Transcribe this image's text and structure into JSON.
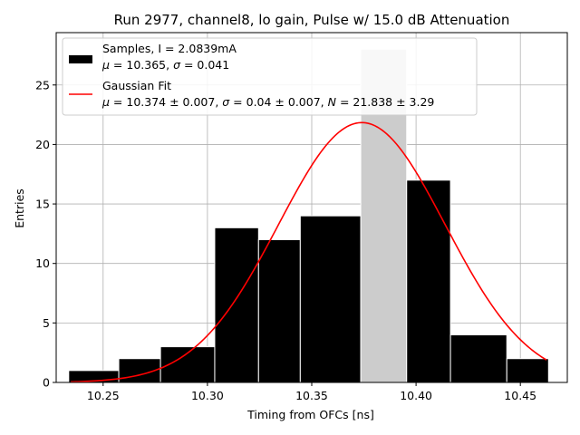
{
  "chart_data": {
    "type": "bar",
    "title": "Run 2977, channel8, lo gain, Pulse w/ 15.0 dB Attenuation",
    "xlabel": "Timing from OFCs [ns]",
    "ylabel": "Entries",
    "xlim": [
      10.2275,
      10.4725
    ],
    "ylim": [
      0,
      29.4
    ],
    "xticks": [
      "10.25",
      "10.30",
      "10.35",
      "10.40",
      "10.45"
    ],
    "xtick_values": [
      10.25,
      10.3,
      10.35,
      10.4,
      10.45
    ],
    "yticks": [
      "0",
      "5",
      "10",
      "15",
      "20",
      "25"
    ],
    "ytick_values": [
      0,
      5,
      10,
      15,
      20,
      25
    ],
    "grid": true,
    "legend_position": "top-left",
    "bin_edges": [
      10.2335,
      10.2575,
      10.2775,
      10.3035,
      10.3245,
      10.3445,
      10.3735,
      10.3955,
      10.4165,
      10.4435,
      10.4635
    ],
    "counts": [
      1,
      2,
      3,
      13,
      12,
      14,
      28,
      17,
      4,
      2
    ],
    "highlighted_bin": 6,
    "fit": {
      "mu": 10.374,
      "sigma": 0.04,
      "N": 21.838,
      "x_range": [
        10.2345,
        10.4625
      ]
    },
    "colors": {
      "bar": "#000000",
      "bar_edge": "#ffffff",
      "highlight_bar": "#cccccc",
      "fit": "#ff0000",
      "grid": "#b0b0b0"
    },
    "legend": [
      {
        "symbol": "bar",
        "line1": "Samples, I = 2.0839mA",
        "line2_parts": [
          "μ",
          " = 10.365, ",
          "σ",
          " = 0.041"
        ]
      },
      {
        "symbol": "line",
        "line1": "Gaussian Fit",
        "line2_parts": [
          "μ",
          " = 10.374 ± 0.007, ",
          "σ",
          " = 0.04 ± 0.007, ",
          "N",
          " = 21.838 ± 3.29"
        ]
      }
    ]
  }
}
